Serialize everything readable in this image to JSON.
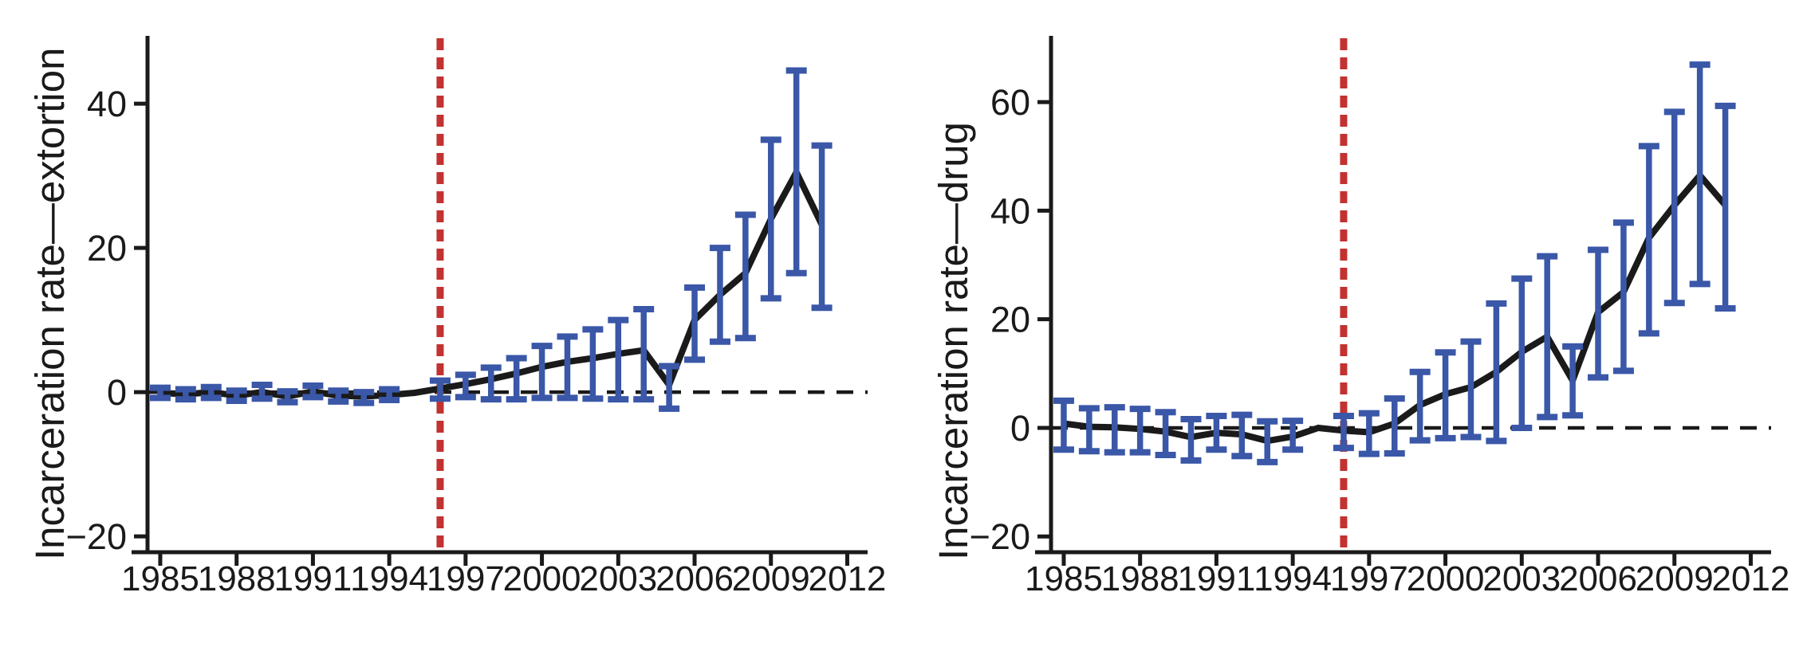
{
  "figure": {
    "background": "#ffffff",
    "description_left_ylabel": "Incarceration rate—extortion",
    "description_right_ylabel": "Incarceration rate—drug"
  },
  "chart_data": [
    {
      "type": "line",
      "panel": "extortion",
      "title": "",
      "xlabel": "",
      "ylabel": "Incarceration rate—extortion",
      "legend": "none",
      "grid": "off",
      "x": [
        1985,
        1986,
        1987,
        1988,
        1989,
        1990,
        1991,
        1992,
        1993,
        1994,
        1995,
        1996,
        1997,
        1998,
        1999,
        2000,
        2001,
        2002,
        2003,
        2004,
        2005,
        2006,
        2007,
        2008,
        2009,
        2010,
        2011
      ],
      "series": [
        {
          "name": "estimate",
          "values": [
            -0.1,
            -0.3,
            0.0,
            -0.5,
            0.0,
            -0.6,
            0.1,
            -0.5,
            -0.6,
            -0.4,
            -0.1,
            0.5,
            1.1,
            1.8,
            2.6,
            3.5,
            4.2,
            4.7,
            5.3,
            5.8,
            1.0,
            10.0,
            13.5,
            16.5,
            24.0,
            30.5,
            23.2
          ]
        },
        {
          "name": "ci_lower",
          "values": [
            -0.8,
            -1.0,
            -0.8,
            -1.2,
            -0.9,
            -1.4,
            -0.7,
            -1.3,
            -1.5,
            -1.1,
            null,
            -0.9,
            -0.7,
            -1.0,
            -1.0,
            -0.8,
            -0.8,
            -0.9,
            -1.0,
            -1.0,
            -2.3,
            4.5,
            7.0,
            7.5,
            13.0,
            16.5,
            11.7
          ]
        },
        {
          "name": "ci_upper",
          "values": [
            0.6,
            0.4,
            0.7,
            0.2,
            1.0,
            0.1,
            0.9,
            0.2,
            0.0,
            0.4,
            null,
            1.6,
            2.4,
            3.4,
            4.7,
            6.4,
            7.7,
            8.7,
            10.0,
            11.5,
            3.6,
            14.5,
            20.0,
            24.6,
            35.0,
            44.6,
            34.2
          ]
        }
      ],
      "xticks": [
        1985,
        1988,
        1991,
        1994,
        1997,
        2000,
        2003,
        2006,
        2009,
        2012
      ],
      "xtick_labels": [
        "1985",
        "1988",
        "1991",
        "1994",
        "1997",
        "2000",
        "2003",
        "2006",
        "2009",
        "2012"
      ],
      "yticks": [
        -20,
        0,
        20,
        40
      ],
      "ytick_labels": [
        "−20",
        "0",
        "20",
        "40"
      ],
      "xlim": [
        1984.5,
        2012.8
      ],
      "ylim": [
        -22.2,
        49.4
      ],
      "vline_x": 1996,
      "hline_y": 0,
      "colors": {
        "estimate": "#1a1a1a",
        "ci": "#3a57a8",
        "vline": "#c23230",
        "hline": "#1a1a1a",
        "axis": "#1a1a1a"
      }
    },
    {
      "type": "line",
      "panel": "drug",
      "title": "",
      "xlabel": "",
      "ylabel": "Incarceration rate—drug",
      "legend": "none",
      "grid": "off",
      "x": [
        1985,
        1986,
        1987,
        1988,
        1989,
        1990,
        1991,
        1992,
        1993,
        1994,
        1995,
        1996,
        1997,
        1998,
        1999,
        2000,
        2001,
        2002,
        2003,
        2004,
        2005,
        2006,
        2007,
        2008,
        2009,
        2010,
        2011
      ],
      "series": [
        {
          "name": "estimate",
          "values": [
            0.8,
            0.2,
            0.1,
            -0.2,
            -0.7,
            -1.7,
            -0.9,
            -1.2,
            -2.4,
            -1.6,
            0.0,
            -0.5,
            -0.8,
            0.8,
            4.2,
            6.2,
            7.5,
            10.3,
            14.0,
            16.8,
            8.7,
            21.3,
            25.0,
            35.0,
            41.0,
            46.5,
            41.0
          ]
        },
        {
          "name": "ci_lower",
          "values": [
            -4.0,
            -4.3,
            -4.5,
            -4.5,
            -5.0,
            -6.0,
            -4.0,
            -5.2,
            -6.3,
            -4.0,
            null,
            -3.7,
            -4.8,
            -4.7,
            -2.3,
            -1.9,
            -1.7,
            -2.4,
            0.0,
            2.0,
            2.3,
            9.3,
            10.5,
            17.4,
            23.0,
            26.5,
            22.0
          ]
        },
        {
          "name": "ci_upper",
          "values": [
            5.0,
            3.6,
            3.8,
            3.5,
            2.9,
            1.6,
            2.2,
            2.4,
            1.2,
            1.3,
            null,
            2.2,
            2.7,
            5.4,
            10.3,
            13.9,
            15.9,
            22.9,
            27.5,
            31.6,
            15.0,
            32.8,
            37.8,
            51.9,
            58.2,
            66.9,
            59.3
          ]
        }
      ],
      "xticks": [
        1985,
        1988,
        1991,
        1994,
        1997,
        2000,
        2003,
        2006,
        2009,
        2012
      ],
      "xtick_labels": [
        "1985",
        "1988",
        "1991",
        "1994",
        "1997",
        "2000",
        "2003",
        "2006",
        "2009",
        "2012"
      ],
      "yticks": [
        -20,
        0,
        20,
        40,
        60
      ],
      "ytick_labels": [
        "−20",
        "0",
        "20",
        "40",
        "60"
      ],
      "xlim": [
        1984.5,
        2012.8
      ],
      "ylim": [
        -22.9,
        72.2
      ],
      "vline_x": 1996,
      "hline_y": 0,
      "colors": {
        "estimate": "#1a1a1a",
        "ci": "#3a57a8",
        "vline": "#c23230",
        "hline": "#1a1a1a",
        "axis": "#1a1a1a"
      }
    }
  ]
}
